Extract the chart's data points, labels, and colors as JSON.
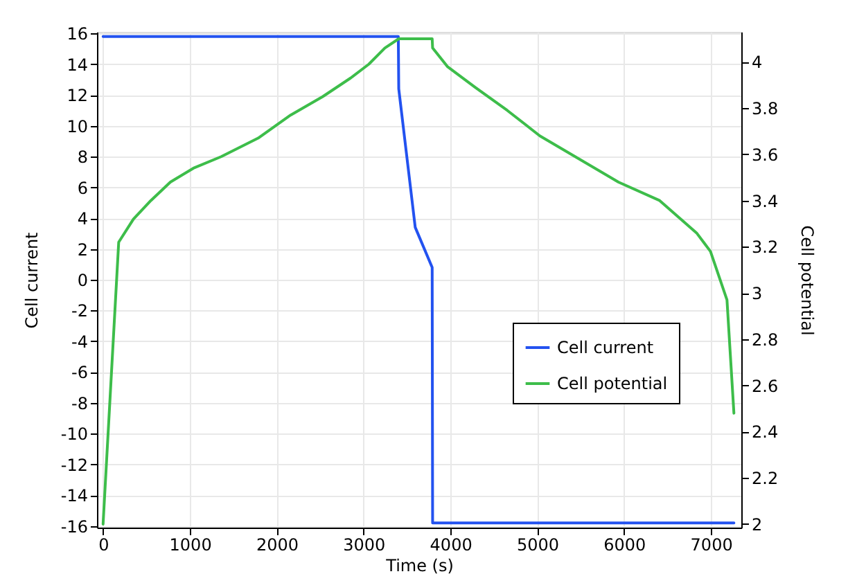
{
  "chart_data": {
    "type": "line",
    "xlabel": "Time (s)",
    "ylabel": "Cell current",
    "y2label": "Cell potential",
    "xlim": [
      -70,
      7350
    ],
    "xticks": [
      0,
      1000,
      2000,
      3000,
      4000,
      5000,
      6000,
      7000
    ],
    "ylim": [
      -16.1,
      16.1
    ],
    "yticks": [
      -16,
      -14,
      -12,
      -10,
      -8,
      -6,
      -4,
      -2,
      0,
      2,
      4,
      6,
      8,
      10,
      12,
      14,
      16
    ],
    "y2lim": [
      1.985,
      4.13
    ],
    "y2ticks": [
      2,
      2.2,
      2.4,
      2.6,
      2.8,
      3,
      3.2,
      3.4,
      3.6,
      3.8,
      4
    ],
    "grid": true,
    "legend": "bottom right",
    "line_style": "solid",
    "marker": "none",
    "series": [
      {
        "name": "Cell current",
        "color": "#2352f0",
        "x": [
          0,
          3400,
          3405,
          3595,
          3790,
          3795,
          7265
        ],
        "values": [
          15.8,
          15.8,
          12.4,
          3.4,
          0.8,
          -15.8,
          -15.8
        ]
      },
      {
        "name": "Cell potential",
        "color": "#3dbd4a",
        "axis": "y2",
        "x": [
          0,
          180,
          350,
          550,
          775,
          1040,
          1360,
          1785,
          2160,
          2530,
          2850,
          3060,
          3245,
          3405,
          3790,
          3795,
          3965,
          4285,
          4655,
          5030,
          5935,
          6410,
          6835,
          6995,
          7185,
          7265
        ],
        "values": [
          2.0,
          3.22,
          3.32,
          3.4,
          3.48,
          3.54,
          3.59,
          3.67,
          3.77,
          3.85,
          3.93,
          3.99,
          4.06,
          4.1,
          4.1,
          4.06,
          3.98,
          3.89,
          3.79,
          3.68,
          3.48,
          3.4,
          3.26,
          3.18,
          2.97,
          2.48
        ]
      }
    ]
  }
}
